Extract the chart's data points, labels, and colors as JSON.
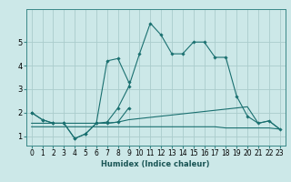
{
  "title": "",
  "xlabel": "Humidex (Indice chaleur)",
  "bg_color": "#cce8e8",
  "grid_color": "#aacccc",
  "line_color": "#1a7070",
  "xlim": [
    -0.5,
    23.5
  ],
  "ylim": [
    0.6,
    6.4
  ],
  "xticks": [
    0,
    1,
    2,
    3,
    4,
    5,
    6,
    7,
    8,
    9,
    10,
    11,
    12,
    13,
    14,
    15,
    16,
    17,
    18,
    19,
    20,
    21,
    22,
    23
  ],
  "yticks": [
    1,
    2,
    3,
    4,
    5
  ],
  "series0": [
    2.0,
    1.7,
    1.55,
    1.55,
    0.9,
    1.1,
    1.55,
    1.6,
    2.2,
    3.1,
    4.5,
    5.8,
    5.3,
    4.5,
    4.5,
    5.0,
    5.0,
    4.35,
    4.35,
    2.7,
    1.85,
    1.55,
    1.65,
    1.3
  ],
  "series1": [
    2.0,
    1.7,
    1.55,
    1.55,
    0.9,
    1.1,
    1.55,
    4.2,
    4.3,
    3.3,
    null,
    null,
    null,
    null,
    null,
    null,
    null,
    null,
    null,
    null,
    null,
    null,
    null,
    null
  ],
  "series2": [
    null,
    null,
    null,
    null,
    null,
    null,
    null,
    1.55,
    1.6,
    2.2,
    null,
    null,
    null,
    null,
    null,
    null,
    null,
    null,
    null,
    null,
    null,
    null,
    null,
    null
  ],
  "series3": [
    1.55,
    1.55,
    1.55,
    1.55,
    1.55,
    1.55,
    1.55,
    1.55,
    1.6,
    1.7,
    1.75,
    1.8,
    1.85,
    1.9,
    1.95,
    2.0,
    2.05,
    2.1,
    2.15,
    2.2,
    2.25,
    1.55,
    1.65,
    1.3
  ],
  "series4": [
    1.4,
    1.4,
    1.4,
    1.4,
    1.4,
    1.4,
    1.4,
    1.4,
    1.4,
    1.4,
    1.4,
    1.4,
    1.4,
    1.4,
    1.4,
    1.4,
    1.4,
    1.4,
    1.35,
    1.35,
    1.35,
    1.35,
    1.35,
    1.3
  ],
  "tick_fontsize": 5.5,
  "xlabel_fontsize": 6.0
}
